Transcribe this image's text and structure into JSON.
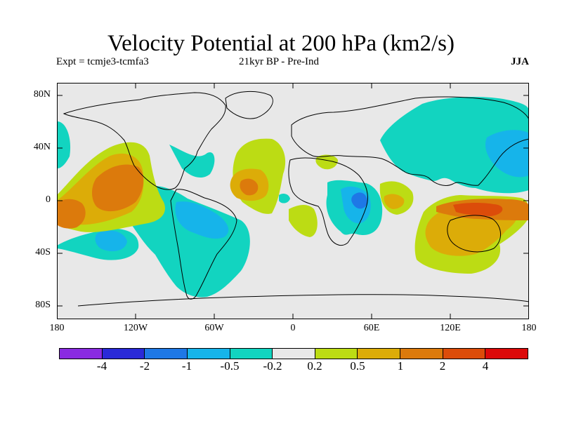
{
  "title": "Velocity Potential at 200 hPa (km2/s)",
  "experiment": "Expt = tcmje3-tcmfa3",
  "period": "21kyr BP - Pre-Ind",
  "season": "JJA",
  "lat_labels": [
    "80N",
    "40N",
    "0",
    "40S",
    "80S"
  ],
  "lon_labels": [
    "180",
    "120W",
    "60W",
    "0",
    "60E",
    "120E",
    "180"
  ],
  "colorbar": {
    "colors": [
      "#8a2be2",
      "#2a2ad8",
      "#1e78e6",
      "#16b4ea",
      "#12d4c0",
      "#e8e8e8",
      "#bcdc14",
      "#dcac08",
      "#dc7a0c",
      "#dc4c0a",
      "#dc0a0a"
    ],
    "labels": [
      "-4",
      "-2",
      "-1",
      "-0.5",
      "-0.2",
      "0.2",
      "0.5",
      "1",
      "2",
      "4"
    ]
  },
  "colors": {
    "neutral": "#e8e8e8",
    "neg_weak": "#12d4c0",
    "neg_mid": "#16b4ea",
    "neg_strong": "#1e78e6",
    "pos_weak": "#bcdc14",
    "pos_mid": "#dcac08",
    "pos_strong": "#dc7a0c",
    "pos_stronger": "#dc4c0a"
  }
}
